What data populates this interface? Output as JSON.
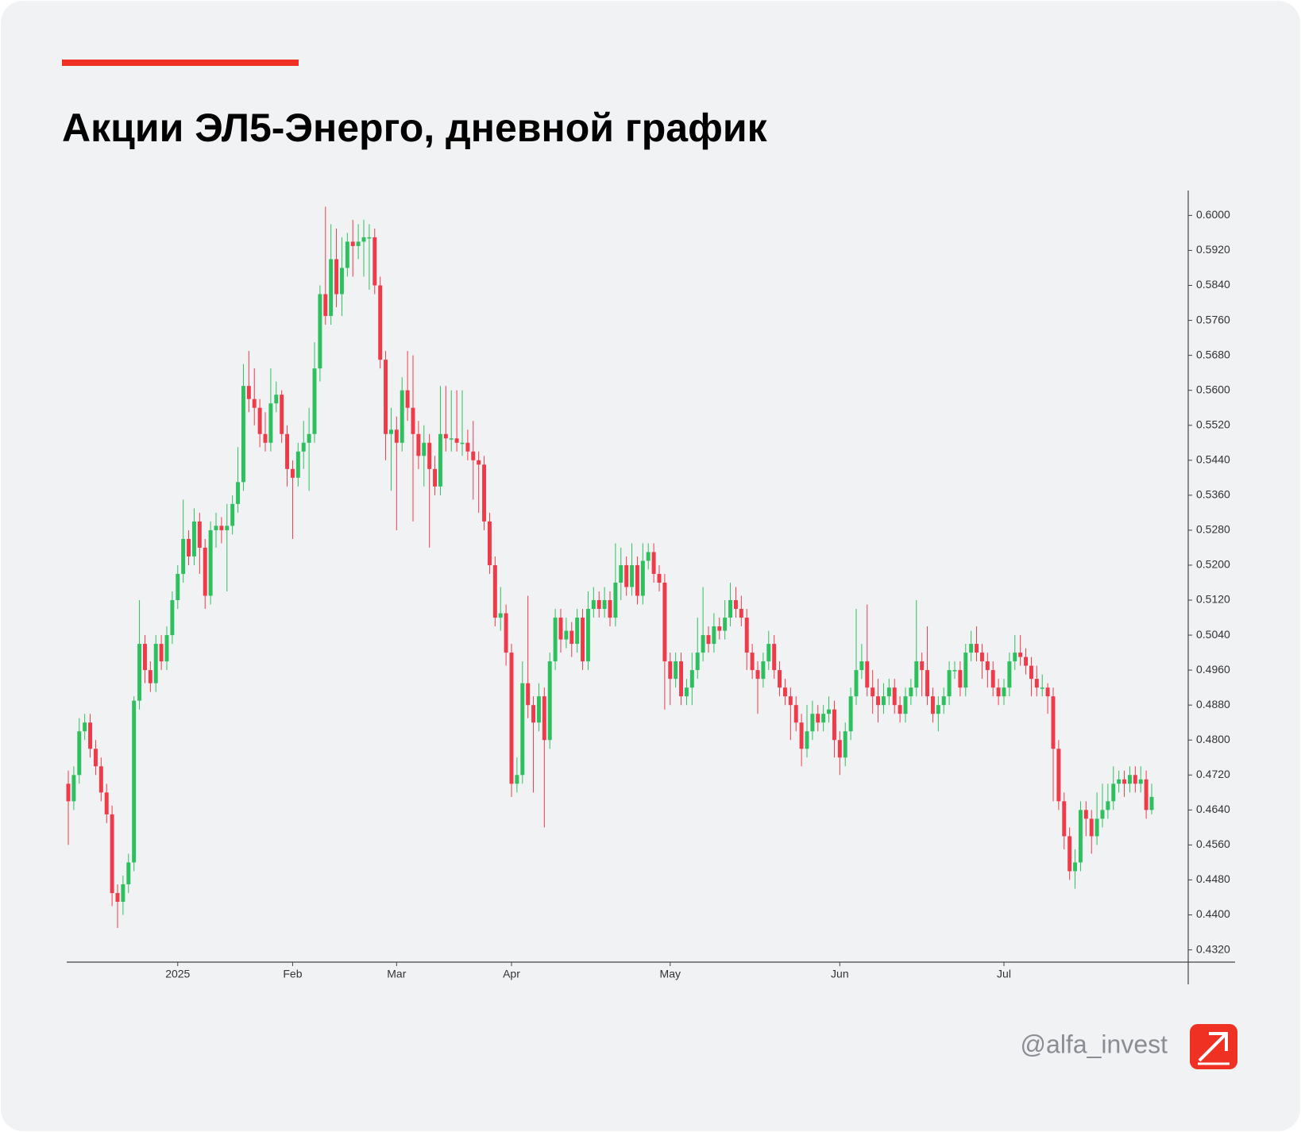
{
  "chart_data": {
    "type": "candlestick",
    "title": "Акции ЭЛ5-Энерго, дневной график",
    "up_color": "#2ec05f",
    "down_color": "#ef3a4a",
    "ylim": [
      0.4292,
      0.6057
    ],
    "yticks": [
      {
        "value": 0.432,
        "label": "0.4320"
      },
      {
        "value": 0.44,
        "label": "0.4400"
      },
      {
        "value": 0.448,
        "label": "0.4480"
      },
      {
        "value": 0.456,
        "label": "0.4560"
      },
      {
        "value": 0.464,
        "label": "0.4640"
      },
      {
        "value": 0.472,
        "label": "0.4720"
      },
      {
        "value": 0.48,
        "label": "0.4800"
      },
      {
        "value": 0.488,
        "label": "0.4880"
      },
      {
        "value": 0.496,
        "label": "0.4960"
      },
      {
        "value": 0.504,
        "label": "0.5040"
      },
      {
        "value": 0.512,
        "label": "0.5120"
      },
      {
        "value": 0.52,
        "label": "0.5200"
      },
      {
        "value": 0.528,
        "label": "0.5280"
      },
      {
        "value": 0.536,
        "label": "0.5360"
      },
      {
        "value": 0.544,
        "label": "0.5440"
      },
      {
        "value": 0.552,
        "label": "0.5520"
      },
      {
        "value": 0.56,
        "label": "0.5600"
      },
      {
        "value": 0.568,
        "label": "0.5680"
      },
      {
        "value": 0.576,
        "label": "0.5760"
      },
      {
        "value": 0.584,
        "label": "0.5840"
      },
      {
        "value": 0.592,
        "label": "0.5920"
      },
      {
        "value": 0.6,
        "label": "0.6000"
      }
    ],
    "xticks": [
      {
        "value": 20,
        "label": "2025"
      },
      {
        "value": 41,
        "label": "Feb"
      },
      {
        "value": 60,
        "label": "Mar"
      },
      {
        "value": 81,
        "label": "Apr"
      },
      {
        "value": 110,
        "label": "May"
      },
      {
        "value": 141,
        "label": "Jun"
      },
      {
        "value": 171,
        "label": "Jul"
      }
    ],
    "open": [
      0.47,
      0.466,
      0.472,
      0.482,
      0.484,
      0.478,
      0.474,
      0.468,
      0.463,
      0.445,
      0.443,
      0.447,
      0.452,
      0.489,
      0.502,
      0.496,
      0.493,
      0.502,
      0.498,
      0.504,
      0.512,
      0.518,
      0.526,
      0.522,
      0.53,
      0.524,
      0.513,
      0.528,
      0.529,
      0.528,
      0.529,
      0.534,
      0.539,
      0.561,
      0.558,
      0.556,
      0.55,
      0.548,
      0.557,
      0.559,
      0.55,
      0.542,
      0.54,
      0.546,
      0.548,
      0.55,
      0.565,
      0.582,
      0.577,
      0.59,
      0.582,
      0.588,
      0.594,
      0.593,
      0.594,
      0.595,
      0.595,
      0.584,
      0.567,
      0.55,
      0.551,
      0.548,
      0.56,
      0.556,
      0.55,
      0.545,
      0.548,
      0.542,
      0.538,
      0.55,
      0.549,
      0.549,
      0.548,
      0.548,
      0.546,
      0.544,
      0.543,
      0.53,
      0.52,
      0.508,
      0.509,
      0.5,
      0.47,
      0.472,
      0.493,
      0.488,
      0.484,
      0.49,
      0.48,
      0.498,
      0.508,
      0.503,
      0.505,
      0.502,
      0.508,
      0.498,
      0.51,
      0.512,
      0.51,
      0.512,
      0.508,
      0.516,
      0.52,
      0.515,
      0.52,
      0.513,
      0.521,
      0.523,
      0.518,
      0.516,
      0.498,
      0.494,
      0.498,
      0.49,
      0.492,
      0.496,
      0.5,
      0.504,
      0.502,
      0.506,
      0.505,
      0.508,
      0.512,
      0.51,
      0.508,
      0.5,
      0.496,
      0.494,
      0.498,
      0.502,
      0.496,
      0.492,
      0.49,
      0.488,
      0.484,
      0.478,
      0.482,
      0.486,
      0.484,
      0.486,
      0.487,
      0.48,
      0.476,
      0.482,
      0.49,
      0.496,
      0.498,
      0.492,
      0.49,
      0.488,
      0.49,
      0.492,
      0.488,
      0.486,
      0.49,
      0.492,
      0.498,
      0.496,
      0.49,
      0.486,
      0.488,
      0.49,
      0.496,
      0.496,
      0.492,
      0.5,
      0.502,
      0.5,
      0.498,
      0.496,
      0.492,
      0.49,
      0.492,
      0.498,
      0.5,
      0.499,
      0.497,
      0.494,
      0.492,
      0.492,
      0.49,
      0.478,
      0.466,
      0.458,
      0.45,
      0.452,
      0.464,
      0.462,
      0.458,
      0.462,
      0.464,
      0.466,
      0.47,
      0.471,
      0.47,
      0.472,
      0.47,
      0.471,
      0.464
    ],
    "high": [
      0.473,
      0.474,
      0.485,
      0.486,
      0.486,
      0.48,
      0.476,
      0.47,
      0.465,
      0.447,
      0.449,
      0.454,
      0.49,
      0.512,
      0.504,
      0.498,
      0.504,
      0.504,
      0.506,
      0.514,
      0.52,
      0.535,
      0.528,
      0.533,
      0.532,
      0.526,
      0.53,
      0.532,
      0.531,
      0.534,
      0.536,
      0.547,
      0.566,
      0.569,
      0.565,
      0.558,
      0.555,
      0.565,
      0.562,
      0.56,
      0.552,
      0.544,
      0.548,
      0.553,
      0.556,
      0.571,
      0.584,
      0.602,
      0.598,
      0.597,
      0.595,
      0.596,
      0.599,
      0.598,
      0.599,
      0.598,
      0.597,
      0.586,
      0.569,
      0.556,
      0.554,
      0.563,
      0.569,
      0.568,
      0.553,
      0.552,
      0.55,
      0.545,
      0.561,
      0.561,
      0.56,
      0.56,
      0.56,
      0.551,
      0.553,
      0.546,
      0.545,
      0.532,
      0.522,
      0.515,
      0.511,
      0.502,
      0.476,
      0.498,
      0.513,
      0.49,
      0.493,
      0.492,
      0.5,
      0.51,
      0.51,
      0.508,
      0.507,
      0.51,
      0.51,
      0.514,
      0.515,
      0.514,
      0.515,
      0.514,
      0.525,
      0.524,
      0.522,
      0.525,
      0.522,
      0.525,
      0.525,
      0.525,
      0.52,
      0.518,
      0.5,
      0.5,
      0.5,
      0.494,
      0.5,
      0.508,
      0.515,
      0.506,
      0.509,
      0.508,
      0.512,
      0.516,
      0.515,
      0.513,
      0.51,
      0.502,
      0.498,
      0.5,
      0.505,
      0.504,
      0.498,
      0.494,
      0.492,
      0.49,
      0.486,
      0.488,
      0.489,
      0.488,
      0.488,
      0.49,
      0.489,
      0.482,
      0.484,
      0.492,
      0.51,
      0.502,
      0.511,
      0.496,
      0.494,
      0.493,
      0.494,
      0.494,
      0.49,
      0.492,
      0.494,
      0.512,
      0.5,
      0.506,
      0.492,
      0.49,
      0.492,
      0.498,
      0.498,
      0.498,
      0.502,
      0.505,
      0.506,
      0.502,
      0.5,
      0.498,
      0.494,
      0.494,
      0.5,
      0.504,
      0.504,
      0.501,
      0.499,
      0.497,
      0.495,
      0.493,
      0.492,
      0.48,
      0.468,
      0.46,
      0.455,
      0.466,
      0.466,
      0.464,
      0.468,
      0.47,
      0.47,
      0.474,
      0.473,
      0.473,
      0.474,
      0.474,
      0.474,
      0.473,
      0.47
    ],
    "low": [
      0.456,
      0.464,
      0.47,
      0.48,
      0.476,
      0.472,
      0.466,
      0.461,
      0.442,
      0.437,
      0.44,
      0.445,
      0.45,
      0.487,
      0.493,
      0.491,
      0.491,
      0.496,
      0.496,
      0.502,
      0.51,
      0.516,
      0.52,
      0.52,
      0.518,
      0.51,
      0.511,
      0.524,
      0.525,
      0.514,
      0.527,
      0.532,
      0.537,
      0.555,
      0.552,
      0.547,
      0.546,
      0.546,
      0.555,
      0.548,
      0.538,
      0.526,
      0.538,
      0.542,
      0.537,
      0.548,
      0.562,
      0.575,
      0.575,
      0.579,
      0.577,
      0.586,
      0.586,
      0.59,
      0.586,
      0.583,
      0.582,
      0.565,
      0.544,
      0.537,
      0.528,
      0.546,
      0.553,
      0.53,
      0.542,
      0.538,
      0.524,
      0.536,
      0.536,
      0.546,
      0.546,
      0.546,
      0.545,
      0.544,
      0.535,
      0.532,
      0.528,
      0.518,
      0.506,
      0.505,
      0.497,
      0.467,
      0.468,
      0.47,
      0.485,
      0.468,
      0.482,
      0.46,
      0.478,
      0.496,
      0.5,
      0.501,
      0.499,
      0.5,
      0.496,
      0.496,
      0.508,
      0.508,
      0.508,
      0.506,
      0.506,
      0.512,
      0.513,
      0.513,
      0.511,
      0.511,
      0.519,
      0.516,
      0.514,
      0.487,
      0.488,
      0.492,
      0.488,
      0.488,
      0.488,
      0.494,
      0.498,
      0.5,
      0.5,
      0.503,
      0.503,
      0.506,
      0.508,
      0.506,
      0.496,
      0.494,
      0.486,
      0.492,
      0.496,
      0.494,
      0.49,
      0.488,
      0.48,
      0.482,
      0.474,
      0.476,
      0.48,
      0.482,
      0.482,
      0.484,
      0.476,
      0.472,
      0.474,
      0.48,
      0.488,
      0.494,
      0.49,
      0.486,
      0.484,
      0.486,
      0.488,
      0.486,
      0.484,
      0.484,
      0.488,
      0.49,
      0.49,
      0.488,
      0.484,
      0.482,
      0.486,
      0.488,
      0.494,
      0.49,
      0.49,
      0.498,
      0.498,
      0.494,
      0.492,
      0.49,
      0.488,
      0.488,
      0.49,
      0.496,
      0.497,
      0.495,
      0.49,
      0.49,
      0.49,
      0.486,
      0.466,
      0.464,
      0.455,
      0.448,
      0.446,
      0.45,
      0.458,
      0.454,
      0.456,
      0.46,
      0.462,
      0.464,
      0.468,
      0.467,
      0.468,
      0.468,
      0.468,
      0.462,
      0.463
    ],
    "close": [
      0.466,
      0.472,
      0.482,
      0.484,
      0.478,
      0.474,
      0.468,
      0.463,
      0.445,
      0.443,
      0.447,
      0.452,
      0.489,
      0.502,
      0.496,
      0.493,
      0.502,
      0.498,
      0.504,
      0.512,
      0.518,
      0.526,
      0.522,
      0.53,
      0.524,
      0.513,
      0.528,
      0.529,
      0.528,
      0.529,
      0.534,
      0.539,
      0.561,
      0.558,
      0.556,
      0.55,
      0.548,
      0.557,
      0.559,
      0.55,
      0.542,
      0.54,
      0.546,
      0.548,
      0.55,
      0.565,
      0.582,
      0.577,
      0.59,
      0.582,
      0.588,
      0.594,
      0.593,
      0.594,
      0.595,
      0.595,
      0.584,
      0.567,
      0.55,
      0.551,
      0.548,
      0.56,
      0.556,
      0.55,
      0.545,
      0.548,
      0.542,
      0.538,
      0.55,
      0.549,
      0.549,
      0.548,
      0.548,
      0.546,
      0.544,
      0.543,
      0.53,
      0.52,
      0.508,
      0.509,
      0.5,
      0.47,
      0.472,
      0.493,
      0.488,
      0.484,
      0.49,
      0.48,
      0.498,
      0.508,
      0.503,
      0.505,
      0.502,
      0.508,
      0.498,
      0.51,
      0.512,
      0.51,
      0.512,
      0.508,
      0.516,
      0.52,
      0.515,
      0.52,
      0.513,
      0.521,
      0.523,
      0.518,
      0.516,
      0.498,
      0.494,
      0.498,
      0.49,
      0.492,
      0.496,
      0.5,
      0.504,
      0.502,
      0.506,
      0.505,
      0.508,
      0.512,
      0.51,
      0.508,
      0.5,
      0.496,
      0.494,
      0.498,
      0.502,
      0.496,
      0.492,
      0.49,
      0.488,
      0.484,
      0.478,
      0.482,
      0.486,
      0.484,
      0.486,
      0.487,
      0.48,
      0.476,
      0.482,
      0.49,
      0.496,
      0.498,
      0.492,
      0.49,
      0.488,
      0.49,
      0.492,
      0.488,
      0.486,
      0.49,
      0.492,
      0.498,
      0.496,
      0.49,
      0.486,
      0.488,
      0.49,
      0.496,
      0.496,
      0.492,
      0.5,
      0.502,
      0.5,
      0.498,
      0.496,
      0.492,
      0.49,
      0.492,
      0.498,
      0.5,
      0.499,
      0.497,
      0.494,
      0.492,
      0.492,
      0.49,
      0.478,
      0.466,
      0.458,
      0.45,
      0.452,
      0.464,
      0.462,
      0.458,
      0.462,
      0.464,
      0.466,
      0.47,
      0.471,
      0.47,
      0.472,
      0.47,
      0.471,
      0.464,
      0.467
    ]
  },
  "footer": {
    "handle": "@alfa_invest"
  }
}
